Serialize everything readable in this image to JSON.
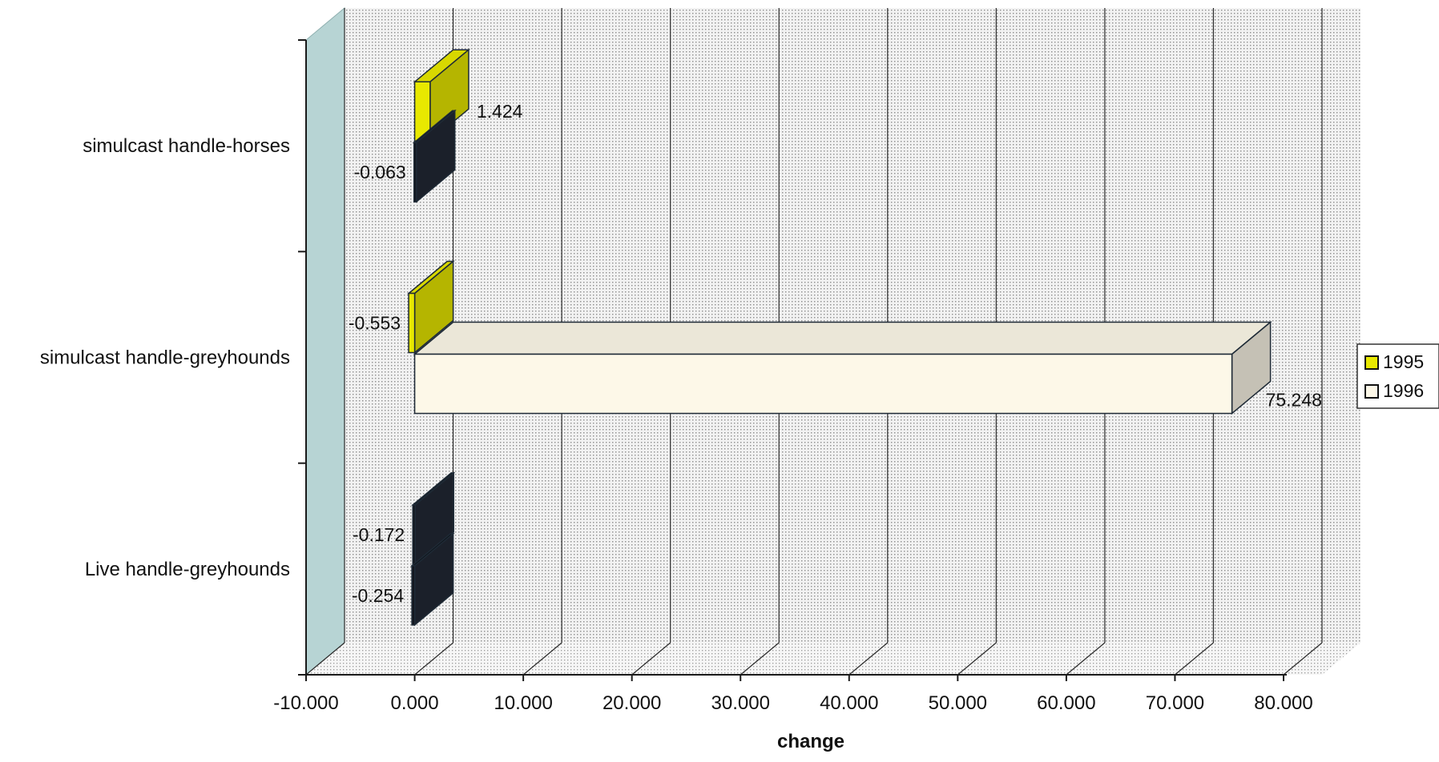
{
  "chart_data": {
    "type": "bar",
    "orientation": "horizontal",
    "style": "3d",
    "categories": [
      "simulcast handle-horses",
      "simulcast handle-greyhounds",
      "Live handle-greyhounds"
    ],
    "series": [
      {
        "name": "1995",
        "color": "#e8e800",
        "values": [
          1.424,
          -0.553,
          -0.172
        ]
      },
      {
        "name": "1996",
        "color": "#fdf8e8",
        "values": [
          -0.063,
          75.248,
          -0.254
        ]
      }
    ],
    "value_labels": [
      [
        "1.424",
        "-0.553",
        "-0.172"
      ],
      [
        "-0.063",
        "75.248",
        "-0.254"
      ]
    ],
    "xlabel": "change",
    "xlim": [
      -10,
      80
    ],
    "xticks": [
      -10,
      0,
      10,
      20,
      30,
      40,
      50,
      60,
      70,
      80
    ],
    "xtick_labels": [
      "-10.000",
      "0.000",
      "10.000",
      "20.000",
      "30.000",
      "40.000",
      "50.000",
      "60.000",
      "70.000",
      "80.000"
    ],
    "grid": true,
    "legend_position": "right"
  },
  "colors": {
    "wall": "#e6e6e6",
    "left_wall": "#b7d4d4",
    "dark_bar_face": "#12151c",
    "outline": "#1e2a36"
  }
}
